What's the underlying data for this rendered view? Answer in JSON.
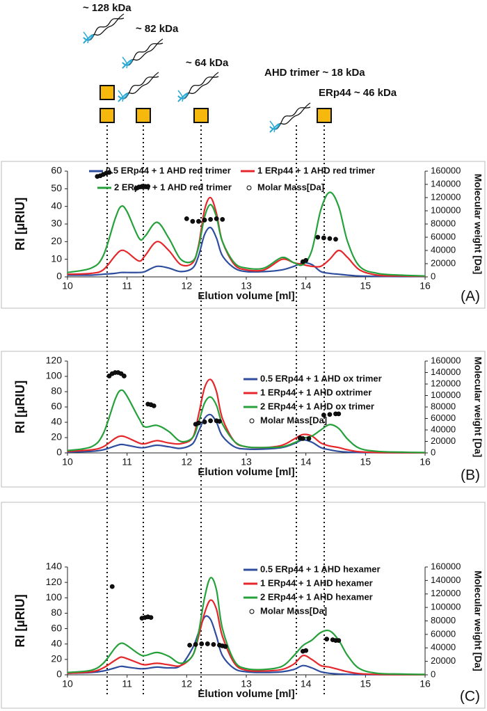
{
  "annotations": [
    {
      "label": "~ 128 kDa"
    },
    {
      "label": "~ 82 kDa"
    },
    {
      "label": "~ 64 kDa"
    },
    {
      "label": "AHD trimer ~ 18 kDa"
    },
    {
      "label": "ERp44 ~ 46 kDa"
    }
  ],
  "chart_data": [
    {
      "type": "line",
      "panel_label": "(A)",
      "xlabel": "Elution volume [ml]",
      "ylabel": "RI [µRIU]",
      "y2label": "Molecular weight [Da]",
      "legend": "top",
      "grid": false,
      "xlim": [
        10,
        16
      ],
      "xticks": [
        10,
        11,
        12,
        13,
        14,
        15,
        16
      ],
      "ylim": [
        0,
        60
      ],
      "yticks": [
        0,
        10,
        20,
        30,
        40,
        50,
        60
      ],
      "y2lim": [
        0,
        160000
      ],
      "y2ticks": [
        0,
        20000,
        40000,
        60000,
        80000,
        100000,
        120000,
        140000,
        160000
      ],
      "x": [
        10,
        10.4,
        10.6,
        10.8,
        10.9,
        11.0,
        11.2,
        11.3,
        11.5,
        11.7,
        11.9,
        12.1,
        12.2,
        12.3,
        12.4,
        12.5,
        12.6,
        12.8,
        13.0,
        13.3,
        13.6,
        13.8,
        13.95,
        14.1,
        14.25,
        14.4,
        14.55,
        14.7,
        14.9,
        15.2,
        15.6,
        16
      ],
      "series": [
        {
          "name": "0.5 ERp44 + 1 AHD red trimer",
          "color": "#2e4d9e",
          "values": [
            1,
            1,
            1.5,
            2,
            2.5,
            2.5,
            2.5,
            3,
            6,
            5,
            3,
            5,
            12,
            24,
            28,
            22,
            12,
            5,
            3,
            3,
            4,
            6,
            8,
            7,
            3,
            2,
            1.5,
            1,
            0.5,
            0.3,
            0.2,
            0.2
          ]
        },
        {
          "name": "1 ERp44 + 1 AHD red trimer",
          "color": "#e5262a",
          "values": [
            1.5,
            2,
            4,
            12,
            15,
            14,
            9,
            12,
            20,
            15,
            7,
            8,
            18,
            38,
            45,
            36,
            20,
            7,
            4,
            4,
            10,
            8,
            7,
            6,
            6,
            10,
            15,
            11,
            4,
            1,
            0.5,
            0.3
          ]
        },
        {
          "name": "2 ERp44 + 1 AHD red trimer",
          "color": "#25a03a",
          "values": [
            2.5,
            5,
            12,
            33,
            40,
            37,
            22,
            23,
            31,
            22,
            10,
            9,
            17,
            34,
            41,
            34,
            20,
            8,
            5,
            5,
            11,
            8,
            7,
            15,
            38,
            48,
            40,
            20,
            6,
            2,
            1,
            0.5
          ]
        },
        {
          "name": "Molar Mass[Da]",
          "axis": "y2",
          "marker": "circle",
          "color": "#111111",
          "x": [
            10.5,
            10.55,
            10.6,
            10.65,
            10.7,
            11.15,
            11.2,
            11.25,
            11.3,
            11.35,
            12.0,
            12.1,
            12.2,
            12.3,
            12.4,
            12.5,
            12.6,
            13.95,
            14.0,
            14.2,
            14.3,
            14.4,
            14.5
          ],
          "values": [
            152000,
            153000,
            155000,
            157000,
            158000,
            134000,
            136000,
            137000,
            137000,
            137000,
            88000,
            84000,
            84000,
            86000,
            87000,
            88000,
            87000,
            23000,
            25000,
            60000,
            59000,
            58000,
            57000
          ]
        }
      ]
    },
    {
      "type": "line",
      "panel_label": "(B)",
      "xlabel": "Elution volume [ml]",
      "ylabel": "RI [µRIU]",
      "y2label": "Molecular weight [Da]",
      "legend": "upper right",
      "grid": false,
      "xlim": [
        10,
        16
      ],
      "xticks": [
        10,
        11,
        12,
        13,
        14,
        15,
        16
      ],
      "ylim": [
        0,
        120
      ],
      "yticks": [
        0,
        20,
        40,
        60,
        80,
        100,
        120
      ],
      "y2lim": [
        0,
        160000
      ],
      "y2ticks": [
        0,
        20000,
        40000,
        60000,
        80000,
        100000,
        120000,
        140000,
        160000
      ],
      "x": [
        10,
        10.4,
        10.6,
        10.8,
        10.9,
        11.0,
        11.2,
        11.3,
        11.5,
        11.7,
        11.9,
        12.1,
        12.2,
        12.3,
        12.4,
        12.5,
        12.6,
        12.8,
        13.0,
        13.3,
        13.6,
        13.8,
        13.95,
        14.1,
        14.25,
        14.4,
        14.55,
        14.7,
        14.9,
        15.2,
        15.6,
        16
      ],
      "series": [
        {
          "name": "0.5 ERp44 + 1 AHD ox trimer",
          "color": "#2e4d9e",
          "values": [
            1,
            2,
            4,
            9,
            11,
            10,
            7,
            7,
            10,
            8,
            6,
            12,
            28,
            45,
            50,
            40,
            22,
            8,
            5,
            5,
            7,
            12,
            17,
            14,
            7,
            4,
            2,
            1,
            0.5,
            0.3,
            0.2,
            0.2
          ]
        },
        {
          "name": "1 ERp44 + 1 AHD oxtrimer",
          "color": "#e5262a",
          "values": [
            2,
            4,
            8,
            19,
            22,
            20,
            13,
            12,
            16,
            13,
            12,
            20,
            50,
            85,
            96,
            80,
            45,
            15,
            8,
            7,
            10,
            18,
            24,
            22,
            13,
            9,
            7,
            4,
            1.5,
            0.5,
            0.3,
            0.2
          ]
        },
        {
          "name": "2 ERp44 + 1 AHD ox trimer",
          "color": "#25a03a",
          "values": [
            3,
            8,
            25,
            70,
            82,
            74,
            45,
            34,
            36,
            28,
            15,
            20,
            40,
            65,
            73,
            62,
            38,
            15,
            8,
            7,
            8,
            13,
            19,
            22,
            30,
            37,
            32,
            18,
            6,
            2,
            1,
            0.5
          ]
        },
        {
          "name": "Molar Mass[Da]",
          "axis": "y2",
          "marker": "circle",
          "color": "#111111",
          "x": [
            10.7,
            10.75,
            10.8,
            10.85,
            10.9,
            10.95,
            11.35,
            11.4,
            11.45,
            12.15,
            12.2,
            12.3,
            12.4,
            12.5,
            12.55,
            13.9,
            13.95,
            14.05,
            14.3,
            14.4,
            14.5,
            14.55
          ],
          "values": [
            134000,
            138000,
            140000,
            140000,
            138000,
            134000,
            85000,
            84000,
            82000,
            50000,
            52000,
            54000,
            56000,
            56000,
            55000,
            26000,
            25000,
            25000,
            66000,
            67000,
            68000,
            68000
          ]
        }
      ]
    },
    {
      "type": "line",
      "panel_label": "(C)",
      "xlabel": "Elution volume [ml]",
      "ylabel": "RI [µRIU]",
      "y2label": "Molecular weight [Da]",
      "legend": "upper right",
      "grid": false,
      "xlim": [
        10,
        16
      ],
      "xticks": [
        10,
        11,
        12,
        13,
        14,
        15,
        16
      ],
      "ylim": [
        0,
        140
      ],
      "yticks": [
        0,
        20,
        40,
        60,
        80,
        100,
        120,
        140
      ],
      "y2lim": [
        0,
        160000
      ],
      "y2ticks": [
        0,
        20000,
        40000,
        60000,
        80000,
        100000,
        120000,
        140000,
        160000
      ],
      "x": [
        10,
        10.4,
        10.6,
        10.8,
        10.9,
        11.0,
        11.2,
        11.3,
        11.5,
        11.7,
        11.9,
        12.1,
        12.2,
        12.3,
        12.4,
        12.5,
        12.6,
        12.8,
        13.0,
        13.3,
        13.6,
        13.8,
        13.95,
        14.1,
        14.25,
        14.4,
        14.55,
        14.7,
        14.9,
        15.2,
        15.6,
        16
      ],
      "series": [
        {
          "name": "0.5 ERp44 + 1 AHD hexamer",
          "color": "#2e4d9e",
          "values": [
            2,
            3,
            5,
            9,
            11,
            10,
            8,
            8,
            10,
            9,
            12,
            35,
            55,
            75,
            72,
            50,
            25,
            8,
            4,
            3,
            4,
            7,
            12,
            9,
            4,
            2,
            1,
            0.5,
            0.3,
            0.2,
            0.2,
            0.2
          ]
        },
        {
          "name": "1 ERp44 + 1 AHD hexamer",
          "color": "#e5262a",
          "values": [
            2,
            4,
            9,
            19,
            23,
            21,
            15,
            13,
            15,
            13,
            12,
            25,
            50,
            80,
            97,
            85,
            50,
            15,
            6,
            5,
            7,
            14,
            25,
            20,
            12,
            10,
            7,
            4,
            1.5,
            0.5,
            0.3,
            0.2
          ]
        },
        {
          "name": "2 ERp44 + 1 AHD hexamer",
          "color": "#25a03a",
          "values": [
            3,
            6,
            15,
            35,
            41,
            38,
            27,
            25,
            29,
            24,
            15,
            25,
            55,
            100,
            126,
            110,
            60,
            18,
            8,
            7,
            11,
            25,
            38,
            45,
            55,
            57,
            45,
            25,
            8,
            2,
            1,
            0.5
          ]
        },
        {
          "name": "Molar Mass[Da]",
          "axis": "y2",
          "marker": "circle",
          "color": "#111111",
          "x": [
            10.75,
            11.25,
            11.3,
            11.35,
            11.4,
            12.05,
            12.15,
            12.25,
            12.35,
            12.45,
            12.55,
            12.6,
            12.65,
            13.95,
            14.0,
            14.35,
            14.45,
            14.5,
            14.55
          ],
          "values": [
            131000,
            84000,
            85000,
            86000,
            85000,
            44000,
            45000,
            46000,
            46000,
            45000,
            44000,
            43000,
            42000,
            35000,
            36000,
            53000,
            52000,
            51000,
            51000
          ]
        }
      ]
    }
  ]
}
